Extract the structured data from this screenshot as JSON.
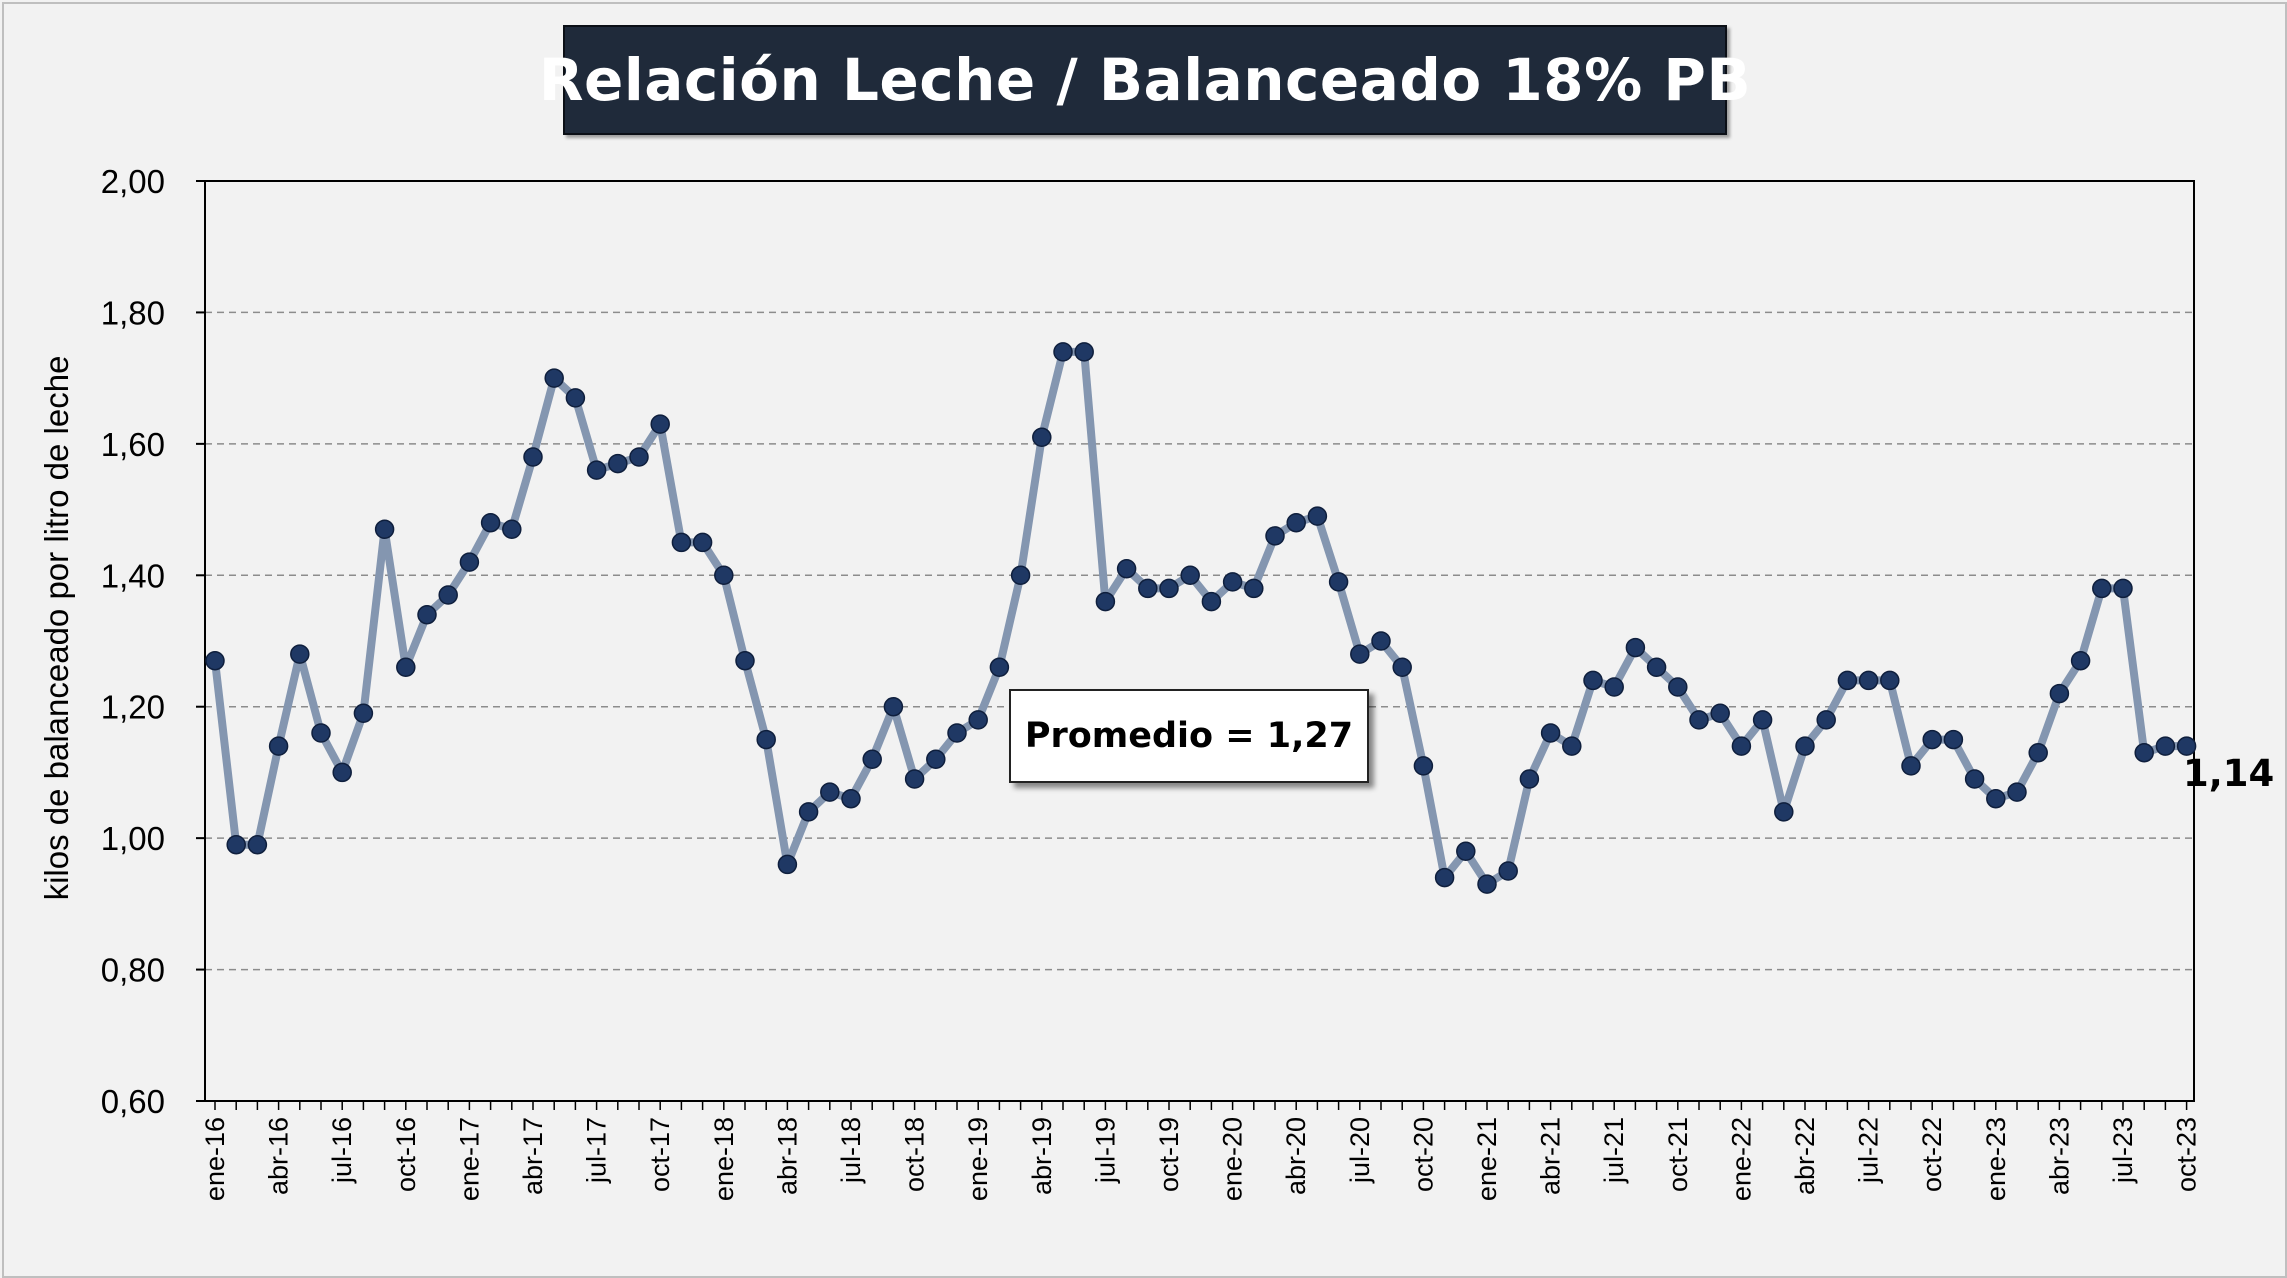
{
  "chart_data": {
    "type": "line",
    "title": "Relación Leche / Balanceado 18% PB",
    "ylabel": "kilos de balanceado por litro de leche",
    "xlabel": "",
    "ylim": [
      0.6,
      2.0
    ],
    "y_ticks": [
      "0,60",
      "0,80",
      "1,00",
      "1,20",
      "1,40",
      "1,60",
      "1,80",
      "2,00"
    ],
    "grid": "horizontal dashed",
    "x_tick_labels": [
      "ene-16",
      "abr-16",
      "jul-16",
      "oct-16",
      "ene-17",
      "abr-17",
      "jul-17",
      "oct-17",
      "ene-18",
      "abr-18",
      "jul-18",
      "oct-18",
      "ene-19",
      "abr-19",
      "jul-19",
      "oct-19",
      "ene-20",
      "abr-20",
      "jul-20",
      "oct-20",
      "ene-21",
      "abr-21",
      "jul-21",
      "oct-21",
      "ene-22",
      "abr-22",
      "jul-22",
      "oct-22",
      "ene-23",
      "abr-23",
      "jul-23",
      "oct-23"
    ],
    "series": [
      {
        "values": [
          1.27,
          0.99,
          0.99,
          1.14,
          1.28,
          1.16,
          1.1,
          1.19,
          1.47,
          1.26,
          1.34,
          1.37,
          1.42,
          1.48,
          1.47,
          1.58,
          1.7,
          1.67,
          1.56,
          1.57,
          1.58,
          1.63,
          1.45,
          1.45,
          1.4,
          1.27,
          1.15,
          0.96,
          1.04,
          1.07,
          1.06,
          1.12,
          1.2,
          1.09,
          1.12,
          1.16,
          1.18,
          1.26,
          1.4,
          1.61,
          1.74,
          1.74,
          1.36,
          1.41,
          1.38,
          1.38,
          1.4,
          1.36,
          1.39,
          1.38,
          1.46,
          1.48,
          1.49,
          1.39,
          1.28,
          1.3,
          1.26,
          1.11,
          0.94,
          0.98,
          0.93,
          0.95,
          1.09,
          1.16,
          1.14,
          1.24,
          1.23,
          1.29,
          1.26,
          1.23,
          1.18,
          1.19,
          1.14,
          1.18,
          1.04,
          1.14,
          1.18,
          1.24,
          1.24,
          1.24,
          1.11,
          1.15,
          1.15,
          1.09,
          1.06,
          1.07,
          1.13,
          1.22,
          1.27,
          1.38,
          1.38,
          1.13,
          1.14,
          1.14
        ],
        "color": "#8496b0",
        "marker_color": "#1f3864"
      }
    ],
    "annotations": {
      "average": "Promedio = 1,27",
      "last_value": "1,14"
    }
  }
}
